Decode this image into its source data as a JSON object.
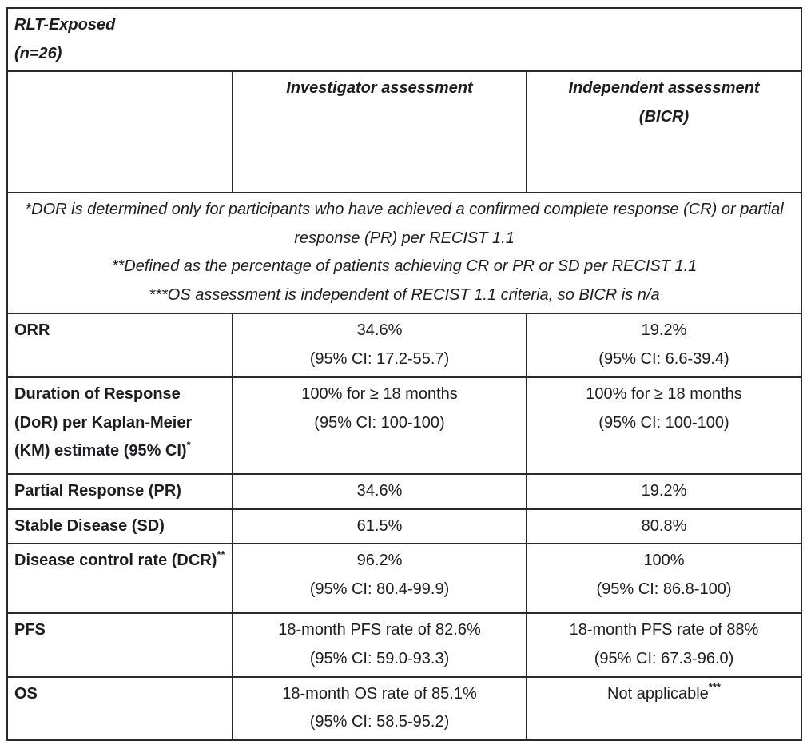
{
  "colors": {
    "background": "#ffffff",
    "border": "#2a2a2a",
    "text": "#1d1d1f"
  },
  "header": {
    "title_line1": "RLT-Exposed",
    "title_line2": "(n=26)",
    "col_investigator": "Investigator assessment",
    "col_bicr_line1": "Independent assessment",
    "col_bicr_line2": "(BICR)"
  },
  "footnotes": [
    "*DOR is determined only for participants who have achieved a confirmed complete response (CR) or partial response (PR) per RECIST 1.1",
    "**Defined as the percentage of patients achieving CR or PR or SD per RECIST 1.1",
    "***OS assessment is independent of RECIST 1.1 criteria, so BICR is n/a"
  ],
  "rows": [
    {
      "label": "ORR",
      "inv": {
        "value": "34.6%",
        "ci": "(95% CI: 17.2-55.7)"
      },
      "bicr": {
        "value": "19.2%",
        "ci": "(95% CI: 6.6-39.4)"
      }
    },
    {
      "label": "Duration of Response (DoR) per Kaplan-Meier (KM) estimate (95% CI)",
      "label_sup": "*",
      "inv": {
        "value": "100% for ≥ 18 months",
        "ci": "(95% CI: 100-100)"
      },
      "bicr": {
        "value": "100% for ≥ 18 months",
        "ci": "(95% CI: 100-100)"
      }
    },
    {
      "label": "Partial Response (PR)",
      "inv": {
        "value": "34.6%"
      },
      "bicr": {
        "value": "19.2%"
      }
    },
    {
      "label": "Stable Disease (SD)",
      "inv": {
        "value": "61.5%"
      },
      "bicr": {
        "value": "80.8%"
      }
    },
    {
      "label": "Disease control rate (DCR)",
      "label_sup": "**",
      "inv": {
        "value": "96.2%",
        "ci": "(95% CI: 80.4-99.9)"
      },
      "bicr": {
        "value": "100%",
        "ci": "(95% CI: 86.8-100)"
      }
    },
    {
      "label": "PFS",
      "inv": {
        "value": "18-month PFS rate of 82.6%",
        "ci": "(95% CI: 59.0-93.3)"
      },
      "bicr": {
        "value": "18-month PFS rate of 88%",
        "ci": "(95% CI: 67.3-96.0)"
      }
    },
    {
      "label": "OS",
      "inv": {
        "value": "18-month OS rate of 85.1%",
        "ci": "(95% CI: 58.5-95.2)"
      },
      "bicr": {
        "value": "Not applicable",
        "sup": "***"
      }
    }
  ]
}
